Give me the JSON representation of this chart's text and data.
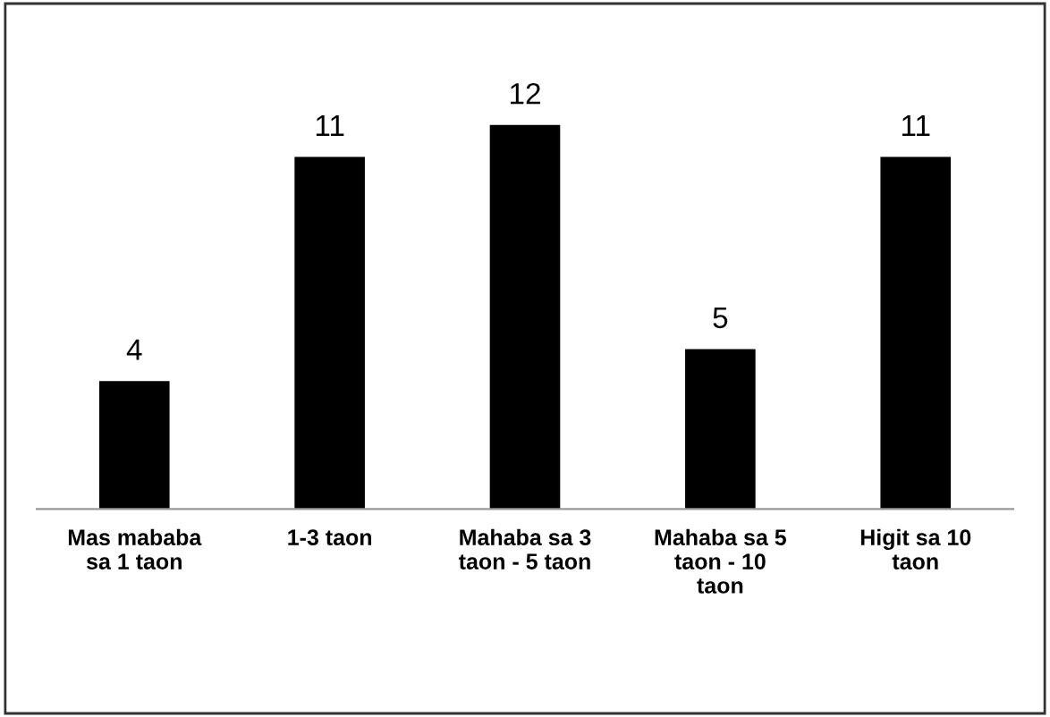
{
  "chart_data": {
    "type": "bar",
    "categories": [
      "Mas mababa\nsa 1 taon",
      "1-3 taon",
      "Mahaba sa 3\ntaon - 5 taon",
      "Mahaba sa 5\ntaon - 10\ntaon",
      "Higit sa 10\ntaon"
    ],
    "values": [
      4,
      11,
      12,
      5,
      11
    ],
    "color": "#000000",
    "data_labels": true,
    "grid": false,
    "legend": false
  }
}
